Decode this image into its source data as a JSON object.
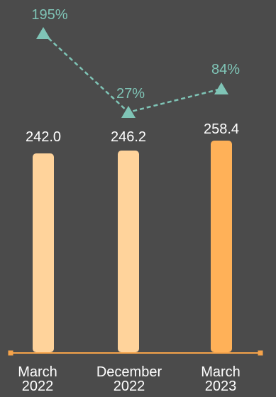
{
  "chart_data": {
    "type": "bar",
    "categories": [
      [
        "March",
        "2022"
      ],
      [
        "December",
        "2022"
      ],
      [
        "March",
        "2023"
      ]
    ],
    "series": [
      {
        "values": [
          242.0,
          246.2,
          258.4
        ],
        "value_labels": [
          "242.0",
          "246.2",
          "258.4"
        ]
      }
    ],
    "line_series": {
      "values": [
        195,
        27,
        84
      ],
      "labels": [
        "195%",
        "27%",
        "84%"
      ],
      "style": "dashed",
      "marker": "triangle"
    },
    "bar_colors": [
      "#ffd39b",
      "#ffd39b",
      "#ffb158"
    ],
    "line_color": "#7fc4b6",
    "axis_color": "#f5a34a",
    "grid": false
  }
}
